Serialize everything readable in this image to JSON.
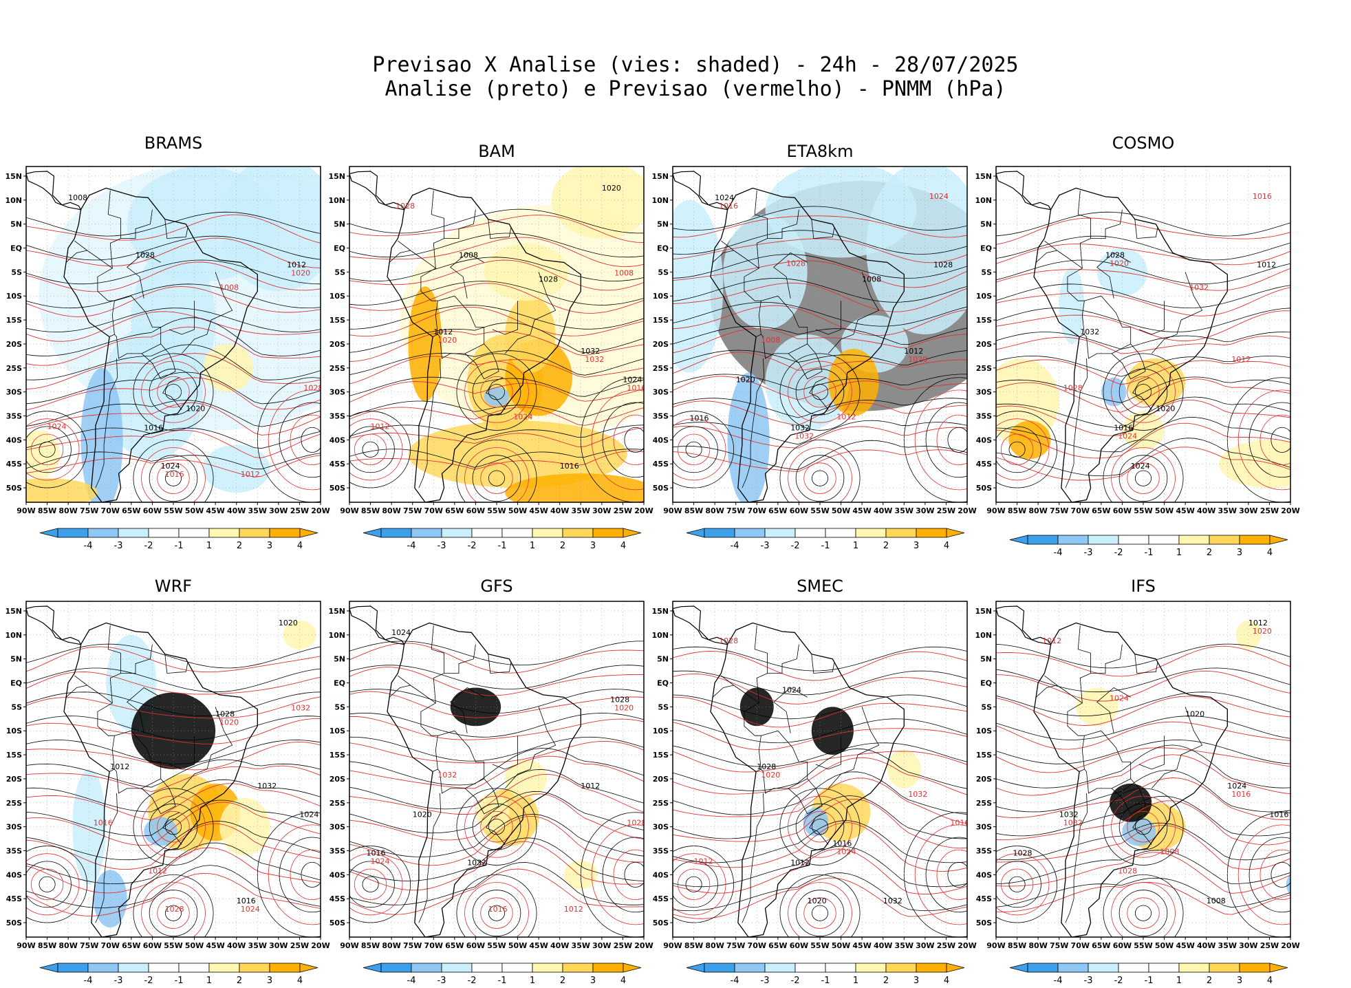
{
  "figure": {
    "title_line1": "Previsao X Analise (vies: shaded) - 24h - 28/07/2025",
    "title_line2": "Analise (preto) e Previsao (vermelho) - PNMM (hPa)"
  },
  "colors": {
    "bias_neg4": "#3ea0ea",
    "bias_neg3": "#8fc7f5",
    "bias_neg2": "#c9eefc",
    "bias_neg1": "#ffffff",
    "bias_pos1": "#fff6b0",
    "bias_pos2": "#ffd85a",
    "bias_pos3": "#ffb000",
    "analysis_contour": "#000000",
    "forecast_contour": "#e03030",
    "grid": "#9a9a9a"
  },
  "chart_data": {
    "type": "heatmap",
    "variable": "PNMM (hPa)",
    "shading": "vies",
    "lon_ticks": [
      "90W",
      "85W",
      "80W",
      "75W",
      "70W",
      "65W",
      "60W",
      "55W",
      "50W",
      "45W",
      "40W",
      "35W",
      "30W",
      "25W",
      "20W"
    ],
    "lat_ticks": [
      "15N",
      "10N",
      "5N",
      "EQ",
      "5S",
      "10S",
      "15S",
      "20S",
      "25S",
      "30S",
      "35S",
      "40S",
      "45S",
      "50S"
    ],
    "lon_range": [
      -90,
      -20
    ],
    "lat_range": [
      -53,
      17
    ],
    "colorbar": {
      "labels": [
        "-4",
        "-3",
        "-2",
        "-1",
        "1",
        "2",
        "3",
        "4"
      ],
      "levels": [
        -4,
        -3,
        -2,
        -1,
        1,
        2,
        3,
        4
      ]
    },
    "panels": [
      {
        "model": "BRAMS",
        "dominant_bias": "negative",
        "isobar_labels": [
          "1008",
          "1012",
          "1016",
          "1020",
          "1024",
          "1028"
        ]
      },
      {
        "model": "BAM",
        "dominant_bias": "positive",
        "isobar_labels": [
          "1008",
          "1012",
          "1016",
          "1020",
          "1024",
          "1028",
          "1032"
        ]
      },
      {
        "model": "ETA8km",
        "dominant_bias": "negative",
        "isobar_labels": [
          "1008",
          "1012",
          "1016",
          "1020",
          "1024",
          "1028",
          "1032"
        ]
      },
      {
        "model": "COSMO",
        "dominant_bias": "mixed",
        "isobar_labels": [
          "1012",
          "1016",
          "1020",
          "1024",
          "1028",
          "1032"
        ]
      },
      {
        "model": "WRF",
        "dominant_bias": "mixed",
        "isobar_labels": [
          "1012",
          "1016",
          "1020",
          "1024",
          "1028",
          "1032"
        ]
      },
      {
        "model": "GFS",
        "dominant_bias": "mixed",
        "isobar_labels": [
          "1012",
          "1016",
          "1020",
          "1024",
          "1028",
          "1032"
        ]
      },
      {
        "model": "SMEC",
        "dominant_bias": "mixed",
        "isobar_labels": [
          "1012",
          "1016",
          "1020",
          "1024",
          "1028",
          "1032"
        ]
      },
      {
        "model": "IFS",
        "dominant_bias": "mixed",
        "isobar_labels": [
          "1008",
          "1012",
          "1016",
          "1020",
          "1024",
          "1028",
          "1032"
        ]
      }
    ]
  }
}
